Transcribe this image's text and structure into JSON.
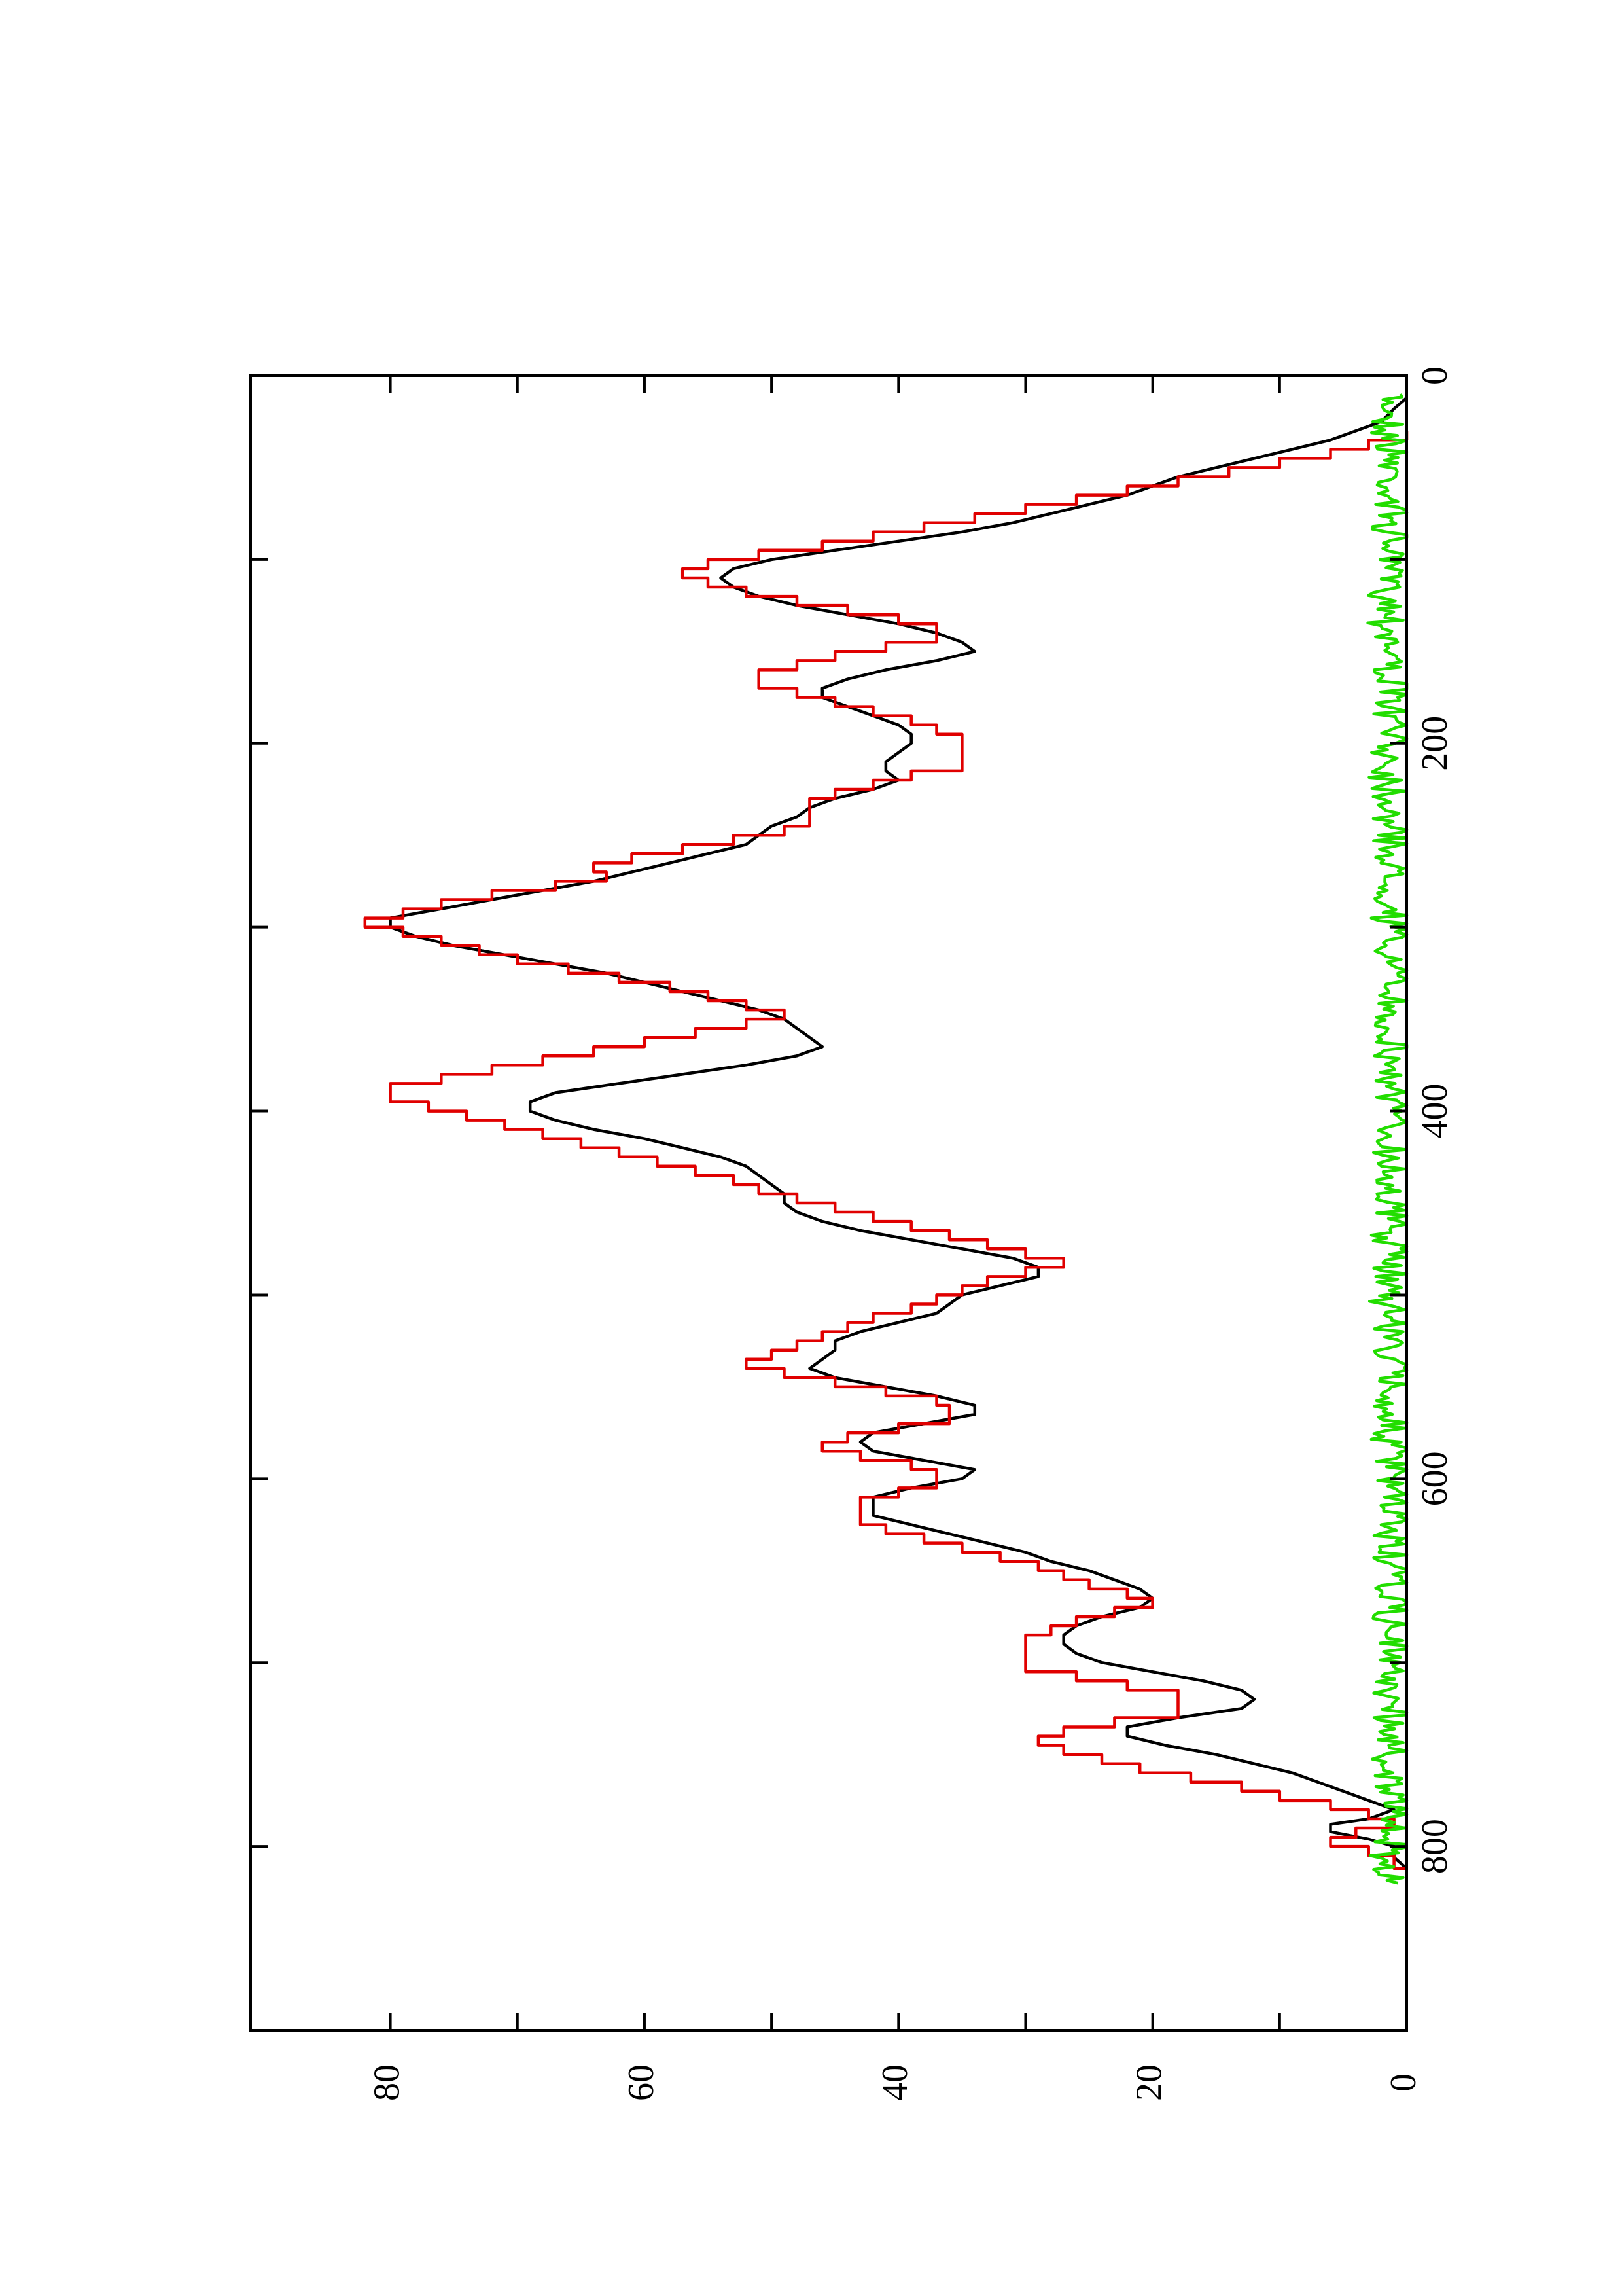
{
  "chart_data": {
    "type": "line",
    "orientation": "rotated-90-ccw",
    "xlim": [
      0,
      900
    ],
    "ylim": [
      0,
      91
    ],
    "x_ticks": [
      {
        "value": 0,
        "label": "0"
      },
      {
        "value": 200,
        "label": "200"
      },
      {
        "value": 400,
        "label": "400"
      },
      {
        "value": 600,
        "label": "600"
      },
      {
        "value": 800,
        "label": "800"
      }
    ],
    "x_minor_ticks": [
      100,
      300,
      500,
      700
    ],
    "y_ticks": [
      {
        "value": 0,
        "label": "0"
      },
      {
        "value": 20,
        "label": "20"
      },
      {
        "value": 40,
        "label": "40"
      },
      {
        "value": 60,
        "label": "60"
      },
      {
        "value": 80,
        "label": "80"
      }
    ],
    "y_minor_ticks": [
      10,
      30,
      50,
      70
    ],
    "grid": false,
    "colors": {
      "black_series": "#000000",
      "red_series": "#e00000",
      "green_series": "#22dd00"
    },
    "series": [
      {
        "color": "#000000",
        "style": "line",
        "points": [
          [
            12,
            0
          ],
          [
            18,
            1
          ],
          [
            25,
            2
          ],
          [
            30,
            4
          ],
          [
            35,
            6
          ],
          [
            40,
            9
          ],
          [
            45,
            12
          ],
          [
            50,
            15
          ],
          [
            55,
            18
          ],
          [
            60,
            20
          ],
          [
            65,
            22
          ],
          [
            70,
            25
          ],
          [
            75,
            28
          ],
          [
            80,
            31
          ],
          [
            85,
            35
          ],
          [
            90,
            40
          ],
          [
            95,
            45
          ],
          [
            100,
            50
          ],
          [
            105,
            53
          ],
          [
            110,
            54
          ],
          [
            115,
            53
          ],
          [
            120,
            51
          ],
          [
            125,
            48
          ],
          [
            130,
            44
          ],
          [
            135,
            40
          ],
          [
            140,
            37
          ],
          [
            145,
            35
          ],
          [
            150,
            34
          ],
          [
            155,
            37
          ],
          [
            160,
            41
          ],
          [
            165,
            44
          ],
          [
            170,
            46
          ],
          [
            175,
            46
          ],
          [
            180,
            44
          ],
          [
            185,
            42
          ],
          [
            190,
            40
          ],
          [
            195,
            39
          ],
          [
            200,
            39
          ],
          [
            205,
            40
          ],
          [
            210,
            41
          ],
          [
            215,
            41
          ],
          [
            220,
            40
          ],
          [
            225,
            42
          ],
          [
            230,
            45
          ],
          [
            235,
            47
          ],
          [
            240,
            48
          ],
          [
            245,
            50
          ],
          [
            250,
            51
          ],
          [
            255,
            52
          ],
          [
            260,
            55
          ],
          [
            265,
            58
          ],
          [
            270,
            61
          ],
          [
            275,
            64
          ],
          [
            280,
            68
          ],
          [
            285,
            72
          ],
          [
            290,
            76
          ],
          [
            295,
            80
          ],
          [
            300,
            80
          ],
          [
            305,
            78
          ],
          [
            310,
            75
          ],
          [
            315,
            71
          ],
          [
            320,
            67
          ],
          [
            325,
            63
          ],
          [
            330,
            60
          ],
          [
            335,
            57
          ],
          [
            340,
            54
          ],
          [
            345,
            51
          ],
          [
            350,
            49
          ],
          [
            355,
            48
          ],
          [
            360,
            47
          ],
          [
            365,
            46
          ],
          [
            370,
            48
          ],
          [
            375,
            52
          ],
          [
            380,
            57
          ],
          [
            385,
            62
          ],
          [
            390,
            67
          ],
          [
            395,
            69
          ],
          [
            400,
            69
          ],
          [
            405,
            67
          ],
          [
            410,
            64
          ],
          [
            415,
            60
          ],
          [
            420,
            57
          ],
          [
            425,
            54
          ],
          [
            430,
            52
          ],
          [
            435,
            51
          ],
          [
            440,
            50
          ],
          [
            445,
            49
          ],
          [
            450,
            49
          ],
          [
            455,
            48
          ],
          [
            460,
            46
          ],
          [
            465,
            43
          ],
          [
            470,
            39
          ],
          [
            475,
            35
          ],
          [
            480,
            31
          ],
          [
            485,
            29
          ],
          [
            490,
            29
          ],
          [
            495,
            32
          ],
          [
            500,
            35
          ],
          [
            505,
            36
          ],
          [
            510,
            37
          ],
          [
            515,
            40
          ],
          [
            520,
            43
          ],
          [
            525,
            45
          ],
          [
            530,
            45
          ],
          [
            535,
            46
          ],
          [
            540,
            47
          ],
          [
            545,
            45
          ],
          [
            550,
            41
          ],
          [
            555,
            37
          ],
          [
            560,
            34
          ],
          [
            565,
            34
          ],
          [
            570,
            38
          ],
          [
            575,
            42
          ],
          [
            580,
            43
          ],
          [
            585,
            42
          ],
          [
            590,
            38
          ],
          [
            595,
            34
          ],
          [
            600,
            35
          ],
          [
            605,
            39
          ],
          [
            610,
            42
          ],
          [
            615,
            42
          ],
          [
            620,
            42
          ],
          [
            625,
            39
          ],
          [
            630,
            36
          ],
          [
            635,
            33
          ],
          [
            640,
            30
          ],
          [
            645,
            28
          ],
          [
            650,
            25
          ],
          [
            655,
            23
          ],
          [
            660,
            21
          ],
          [
            665,
            20
          ],
          [
            670,
            21
          ],
          [
            675,
            24
          ],
          [
            680,
            26
          ],
          [
            685,
            27
          ],
          [
            690,
            27
          ],
          [
            695,
            26
          ],
          [
            700,
            24
          ],
          [
            705,
            20
          ],
          [
            710,
            16
          ],
          [
            715,
            13
          ],
          [
            720,
            12
          ],
          [
            725,
            13
          ],
          [
            730,
            18
          ],
          [
            735,
            22
          ],
          [
            740,
            22
          ],
          [
            745,
            19
          ],
          [
            750,
            15
          ],
          [
            755,
            12
          ],
          [
            760,
            9
          ],
          [
            765,
            7
          ],
          [
            770,
            5
          ],
          [
            775,
            3
          ],
          [
            780,
            1
          ],
          [
            785,
            3
          ],
          [
            788,
            6
          ],
          [
            792,
            6
          ],
          [
            796,
            3
          ],
          [
            800,
            1
          ],
          [
            806,
            1
          ],
          [
            812,
            0
          ]
        ]
      },
      {
        "color": "#e00000",
        "style": "step",
        "points": [
          [
            30,
            0
          ],
          [
            35,
            3
          ],
          [
            40,
            6
          ],
          [
            45,
            10
          ],
          [
            50,
            14
          ],
          [
            55,
            18
          ],
          [
            60,
            22
          ],
          [
            65,
            26
          ],
          [
            70,
            30
          ],
          [
            75,
            34
          ],
          [
            80,
            38
          ],
          [
            85,
            42
          ],
          [
            90,
            46
          ],
          [
            95,
            51
          ],
          [
            100,
            55
          ],
          [
            105,
            57
          ],
          [
            110,
            55
          ],
          [
            115,
            52
          ],
          [
            120,
            48
          ],
          [
            125,
            44
          ],
          [
            130,
            40
          ],
          [
            135,
            37
          ],
          [
            140,
            37
          ],
          [
            145,
            41
          ],
          [
            150,
            45
          ],
          [
            155,
            48
          ],
          [
            160,
            51
          ],
          [
            165,
            51
          ],
          [
            170,
            48
          ],
          [
            175,
            45
          ],
          [
            180,
            42
          ],
          [
            185,
            39
          ],
          [
            190,
            37
          ],
          [
            195,
            35
          ],
          [
            210,
            35
          ],
          [
            215,
            39
          ],
          [
            220,
            42
          ],
          [
            225,
            45
          ],
          [
            230,
            47
          ],
          [
            245,
            49
          ],
          [
            250,
            53
          ],
          [
            255,
            57
          ],
          [
            260,
            61
          ],
          [
            265,
            64
          ],
          [
            270,
            63
          ],
          [
            275,
            67
          ],
          [
            280,
            72
          ],
          [
            285,
            76
          ],
          [
            290,
            79
          ],
          [
            295,
            82
          ],
          [
            300,
            79
          ],
          [
            305,
            76
          ],
          [
            310,
            73
          ],
          [
            315,
            70
          ],
          [
            320,
            66
          ],
          [
            325,
            62
          ],
          [
            330,
            58
          ],
          [
            335,
            55
          ],
          [
            340,
            52
          ],
          [
            345,
            49
          ],
          [
            350,
            52
          ],
          [
            355,
            56
          ],
          [
            360,
            60
          ],
          [
            365,
            64
          ],
          [
            370,
            68
          ],
          [
            375,
            72
          ],
          [
            380,
            76
          ],
          [
            385,
            80
          ],
          [
            390,
            80
          ],
          [
            395,
            77
          ],
          [
            400,
            74
          ],
          [
            405,
            71
          ],
          [
            410,
            68
          ],
          [
            415,
            65
          ],
          [
            420,
            62
          ],
          [
            425,
            59
          ],
          [
            430,
            56
          ],
          [
            435,
            53
          ],
          [
            440,
            51
          ],
          [
            445,
            48
          ],
          [
            450,
            45
          ],
          [
            455,
            42
          ],
          [
            460,
            39
          ],
          [
            465,
            36
          ],
          [
            470,
            33
          ],
          [
            475,
            30
          ],
          [
            480,
            27
          ],
          [
            485,
            30
          ],
          [
            490,
            33
          ],
          [
            495,
            35
          ],
          [
            500,
            37
          ],
          [
            505,
            39
          ],
          [
            510,
            42
          ],
          [
            515,
            44
          ],
          [
            520,
            46
          ],
          [
            525,
            48
          ],
          [
            530,
            50
          ],
          [
            535,
            52
          ],
          [
            540,
            49
          ],
          [
            545,
            45
          ],
          [
            550,
            41
          ],
          [
            555,
            37
          ],
          [
            560,
            36
          ],
          [
            570,
            40
          ],
          [
            575,
            44
          ],
          [
            580,
            46
          ],
          [
            585,
            43
          ],
          [
            590,
            39
          ],
          [
            595,
            37
          ],
          [
            605,
            40
          ],
          [
            610,
            43
          ],
          [
            615,
            43
          ],
          [
            625,
            41
          ],
          [
            630,
            38
          ],
          [
            635,
            35
          ],
          [
            640,
            32
          ],
          [
            645,
            29
          ],
          [
            650,
            27
          ],
          [
            655,
            25
          ],
          [
            660,
            22
          ],
          [
            665,
            20
          ],
          [
            670,
            23
          ],
          [
            675,
            26
          ],
          [
            680,
            28
          ],
          [
            685,
            30
          ],
          [
            700,
            30
          ],
          [
            705,
            26
          ],
          [
            710,
            22
          ],
          [
            715,
            18
          ],
          [
            725,
            18
          ],
          [
            730,
            23
          ],
          [
            735,
            27
          ],
          [
            740,
            29
          ],
          [
            745,
            27
          ],
          [
            750,
            24
          ],
          [
            755,
            21
          ],
          [
            760,
            17
          ],
          [
            765,
            13
          ],
          [
            770,
            10
          ],
          [
            775,
            6
          ],
          [
            780,
            3
          ],
          [
            785,
            1
          ],
          [
            790,
            4
          ],
          [
            795,
            6
          ],
          [
            800,
            3
          ],
          [
            805,
            1
          ],
          [
            812,
            0
          ]
        ]
      },
      {
        "color": "#22dd00",
        "style": "noise",
        "x_range": [
          10,
          820
        ],
        "amplitude": 2.5,
        "seed": 7
      }
    ]
  }
}
